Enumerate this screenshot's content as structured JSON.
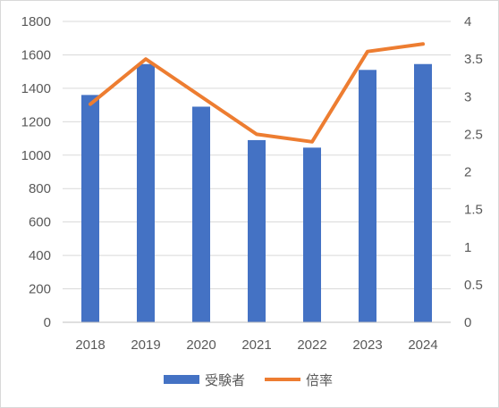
{
  "chart_data": {
    "type": "bar",
    "categories": [
      "2018",
      "2019",
      "2020",
      "2021",
      "2022",
      "2023",
      "2024"
    ],
    "series": [
      {
        "name": "受験者",
        "type": "bar",
        "axis": "left",
        "color": "#4472C4",
        "values": [
          1360,
          1545,
          1290,
          1090,
          1045,
          1510,
          1545
        ]
      },
      {
        "name": "倍率",
        "type": "line",
        "axis": "right",
        "color": "#ED7D31",
        "values": [
          2.9,
          3.5,
          3.0,
          2.5,
          2.4,
          3.6,
          3.7
        ]
      }
    ],
    "y_left": {
      "min": 0,
      "max": 1800,
      "step": 200,
      "ticks": [
        "0",
        "200",
        "400",
        "600",
        "800",
        "1000",
        "1200",
        "1400",
        "1600",
        "1800"
      ]
    },
    "y_right": {
      "min": 0,
      "max": 4,
      "step": 0.5,
      "ticks": [
        "0",
        "0.5",
        "1",
        "1.5",
        "2",
        "2.5",
        "3",
        "3.5",
        "4"
      ]
    },
    "grid": true,
    "legend_position": "bottom"
  }
}
